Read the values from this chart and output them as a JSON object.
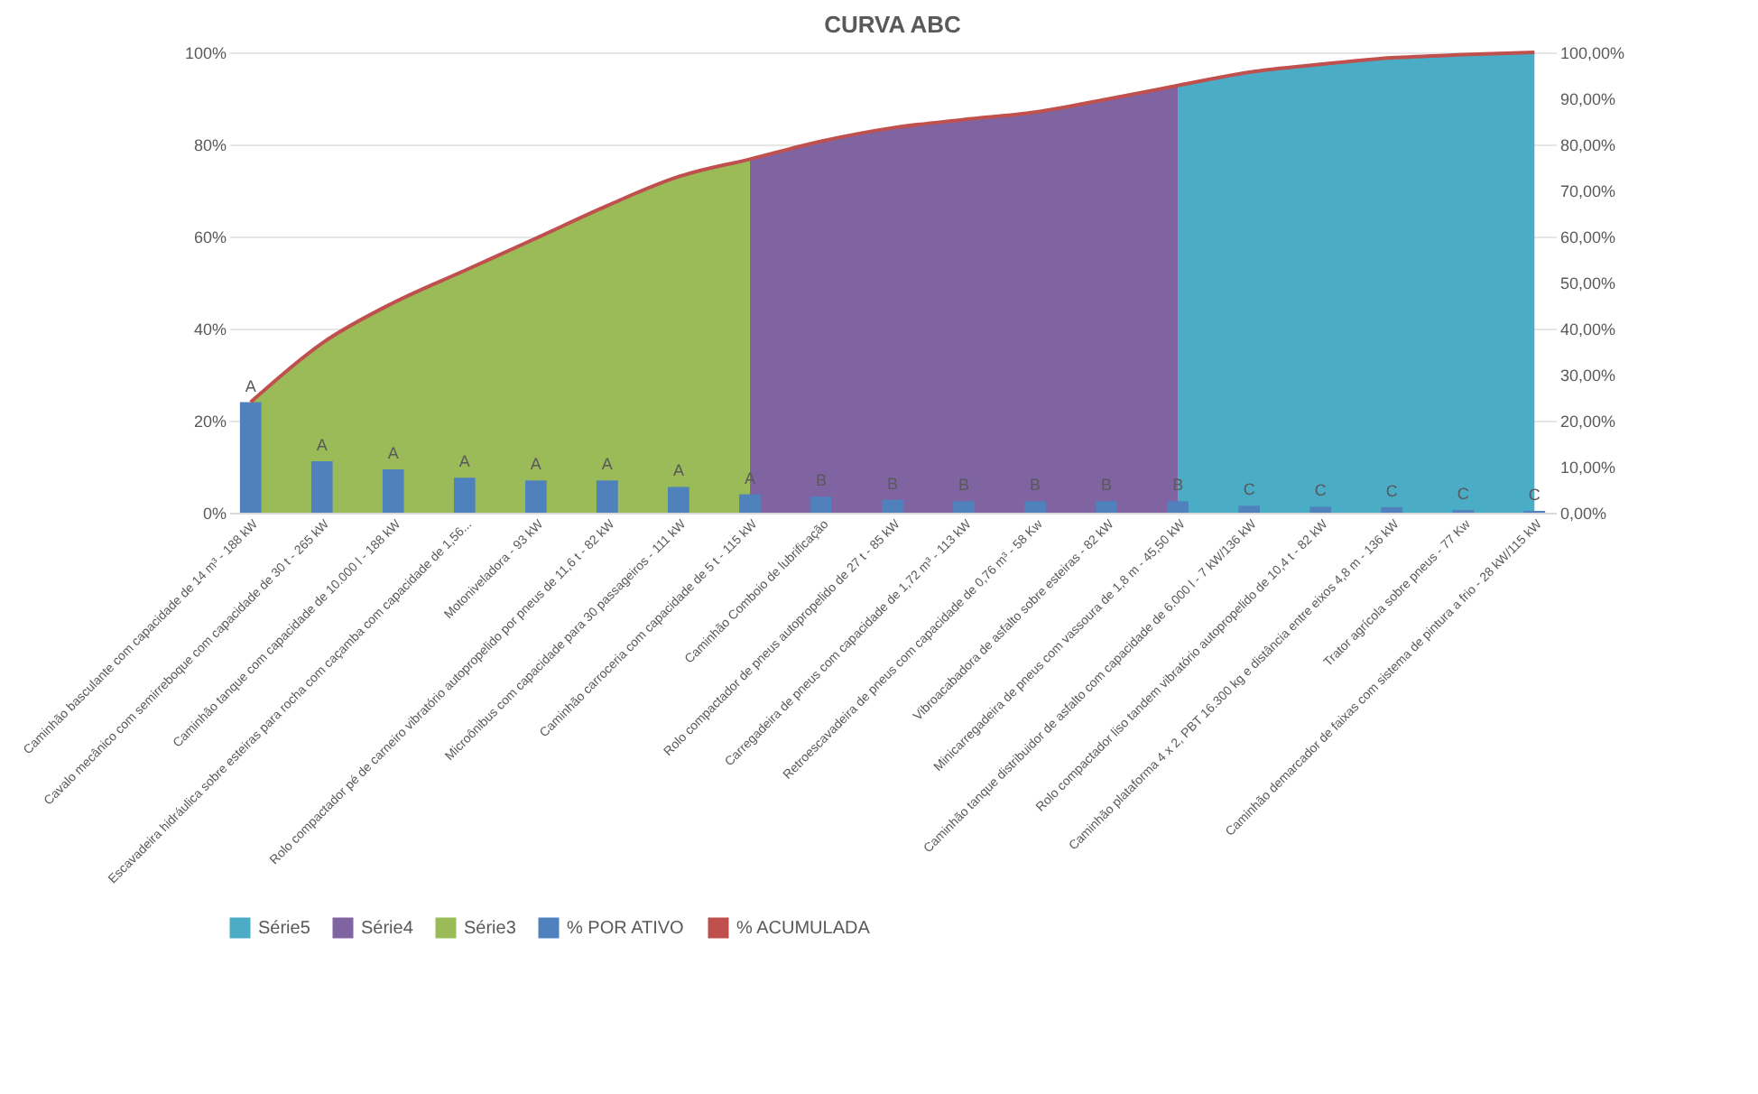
{
  "chart_data": {
    "type": "bar",
    "title": "CURVA ABC",
    "categories": [
      "Caminhão basculante com capacidade de 14 m³ - 188 kW",
      "Cavalo mecânico com semirreboque com capacidade de 30 t - 265 kW",
      "Caminhão tanque com capacidade de 10.000 l - 188 kW",
      "Escavadeira hidráulica sobre esteiras para rocha com caçamba com capacidade de 1,56...",
      "Motoniveladora - 93 kW",
      "Rolo compactador pé de carneiro vibratório autopropelido por pneus de 11,6 t - 82 kW",
      "Microônibus com capacidade para 30 passageiros - 111 kW",
      "Caminhão carroceria com capacidade de 5 t - 115 kW",
      "Caminhão Comboio de lubrificação",
      "Rolo compactador de pneus autopropelido de 27 t - 85 kW",
      "Carregadeira de pneus com capacidade de 1,72 m³ - 113 kW",
      "Retroescavadeira de pneus com capacidade de 0,76 m³ - 58 Kw",
      "Vibroacabadora de asfalto sobre esteiras - 82 kW",
      "Minicarregadeira de pneus com vassoura de 1,8 m - 45,50 kW",
      "Caminhão tanque distribuidor de asfalto com capacidade de 6.000 l - 7 kW/136 kW",
      "Rolo compactador liso tandem vibratório autopropelido de 10,4 t - 82 kW",
      "Caminhão plataforma 4 x 2, PBT 16.300 kg e distância entre eixos 4,8 m - 136 kW",
      "Trator agrícola sobre pneus - 77 Kw",
      "Caminhão demarcador de faixas com sistema de pintura a frio - 28 kW/115 kW"
    ],
    "series": [
      {
        "name": "Série5",
        "type": "area",
        "axis": "y2",
        "color": "#4bacc6",
        "values": [
          null,
          null,
          null,
          null,
          null,
          null,
          null,
          null,
          null,
          null,
          null,
          null,
          null,
          92.8,
          95.7,
          97.4,
          98.8,
          99.5,
          100
        ]
      },
      {
        "name": "Série4",
        "type": "area",
        "axis": "y2",
        "color": "#8064a2",
        "values": [
          null,
          null,
          null,
          null,
          null,
          null,
          null,
          76.8,
          80.7,
          83.6,
          85.4,
          87,
          89.8,
          92.8,
          null,
          null,
          null,
          null,
          null
        ]
      },
      {
        "name": "Série3",
        "type": "area",
        "axis": "y2",
        "color": "#9bbb59",
        "values": [
          24,
          36.8,
          45.6,
          52.6,
          59.6,
          66.7,
          73,
          76.8,
          null,
          null,
          null,
          null,
          null,
          null,
          null,
          null,
          null,
          null,
          null
        ]
      },
      {
        "name": "% POR ATIVO",
        "color": "#4f81bd",
        "values": [
          24,
          11.2,
          9.4,
          7.6,
          7,
          7,
          5.6,
          4,
          3.5,
          2.8,
          2.5,
          2.5,
          2.5,
          2.5,
          1.5,
          1.3,
          1.2,
          0.6,
          0.4
        ],
        "value_labels": [
          "A",
          "A",
          "A",
          "A",
          "A",
          "A",
          "A",
          "A",
          "B",
          "B",
          "B",
          "B",
          "B",
          "B",
          "C",
          "C",
          "C",
          "C",
          "C"
        ]
      },
      {
        "name": "% ACUMULADA",
        "type": "line",
        "color": "#c0504d",
        "values": [
          24,
          36.8,
          45.6,
          52.6,
          59.6,
          66.7,
          73,
          76.8,
          80.7,
          83.6,
          85.4,
          87,
          89.8,
          92.8,
          95.7,
          97.4,
          98.8,
          99.5,
          100
        ]
      }
    ],
    "ylim": [
      0,
      100
    ],
    "yticks": [
      {
        "value": 0,
        "label": "0%"
      },
      {
        "value": 20,
        "label": "20%"
      },
      {
        "value": 40,
        "label": "40%"
      },
      {
        "value": 60,
        "label": "60%"
      },
      {
        "value": 80,
        "label": "80%"
      },
      {
        "value": 100,
        "label": "100%"
      }
    ],
    "y2lim": [
      0,
      100
    ],
    "y2ticks": [
      {
        "value": 0,
        "label": "0,00%"
      },
      {
        "value": 10,
        "label": "10,00%"
      },
      {
        "value": 20,
        "label": "20,00%"
      },
      {
        "value": 30,
        "label": "30,00%"
      },
      {
        "value": 40,
        "label": "40,00%"
      },
      {
        "value": 50,
        "label": "50,00%"
      },
      {
        "value": 60,
        "label": "60,00%"
      },
      {
        "value": 70,
        "label": "70,00%"
      },
      {
        "value": 80,
        "label": "80,00%"
      },
      {
        "value": 90,
        "label": "90,00%"
      },
      {
        "value": 100,
        "label": "100,00%"
      }
    ],
    "grid": "y",
    "legend": "bottom"
  }
}
